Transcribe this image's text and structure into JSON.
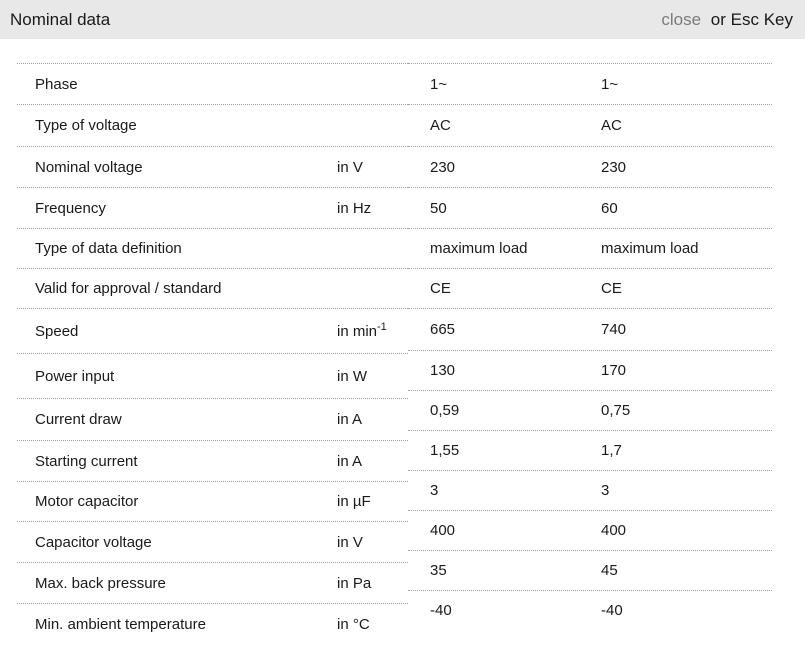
{
  "header": {
    "title": "Nominal data",
    "close_label": "close",
    "esc_hint": "or Esc Key"
  },
  "colors": {
    "header_bar": "#e8e8e8",
    "close_link": "#7a7a7a",
    "separator": "#a3a3a3",
    "text": "#1a1a1a"
  },
  "table": {
    "rows": [
      {
        "label": "Phase",
        "unit": "",
        "unit_sup": "",
        "values": [
          "1~",
          "1~"
        ]
      },
      {
        "label": "Type of voltage",
        "unit": "",
        "unit_sup": "",
        "values": [
          "AC",
          "AC"
        ]
      },
      {
        "label": "Nominal voltage",
        "unit": "in V",
        "unit_sup": "",
        "values": [
          "230",
          "230"
        ]
      },
      {
        "label": "Frequency",
        "unit": "in Hz",
        "unit_sup": "",
        "values": [
          "50",
          "60"
        ]
      },
      {
        "label": "Type of data definition",
        "unit": "",
        "unit_sup": "",
        "values": [
          "maximum load",
          "maximum load"
        ]
      },
      {
        "label": "Valid for approval / standard",
        "unit": "",
        "unit_sup": "",
        "values": [
          "CE",
          "CE"
        ]
      },
      {
        "label": "Speed",
        "unit": "in min",
        "unit_sup": "-1",
        "values": [
          "665",
          "740"
        ]
      },
      {
        "label": "Power input",
        "unit": "in W",
        "unit_sup": "",
        "values": [
          "130",
          "170"
        ]
      },
      {
        "label": "Current draw",
        "unit": "in A",
        "unit_sup": "",
        "values": [
          "0,59",
          "0,75"
        ]
      },
      {
        "label": "Starting current",
        "unit": "in A",
        "unit_sup": "",
        "values": [
          "1,55",
          "1,7"
        ]
      },
      {
        "label": "Motor capacitor",
        "unit": "in µF",
        "unit_sup": "",
        "values": [
          "3",
          "3"
        ]
      },
      {
        "label": "Capacitor voltage",
        "unit": "in V",
        "unit_sup": "",
        "values": [
          "400",
          "400"
        ]
      },
      {
        "label": "Max. back pressure",
        "unit": "in Pa",
        "unit_sup": "",
        "values": [
          "35",
          "45"
        ]
      },
      {
        "label": "Min. ambient temperature",
        "unit": "in °C",
        "unit_sup": "",
        "values": [
          "-40",
          "-40"
        ]
      }
    ]
  }
}
